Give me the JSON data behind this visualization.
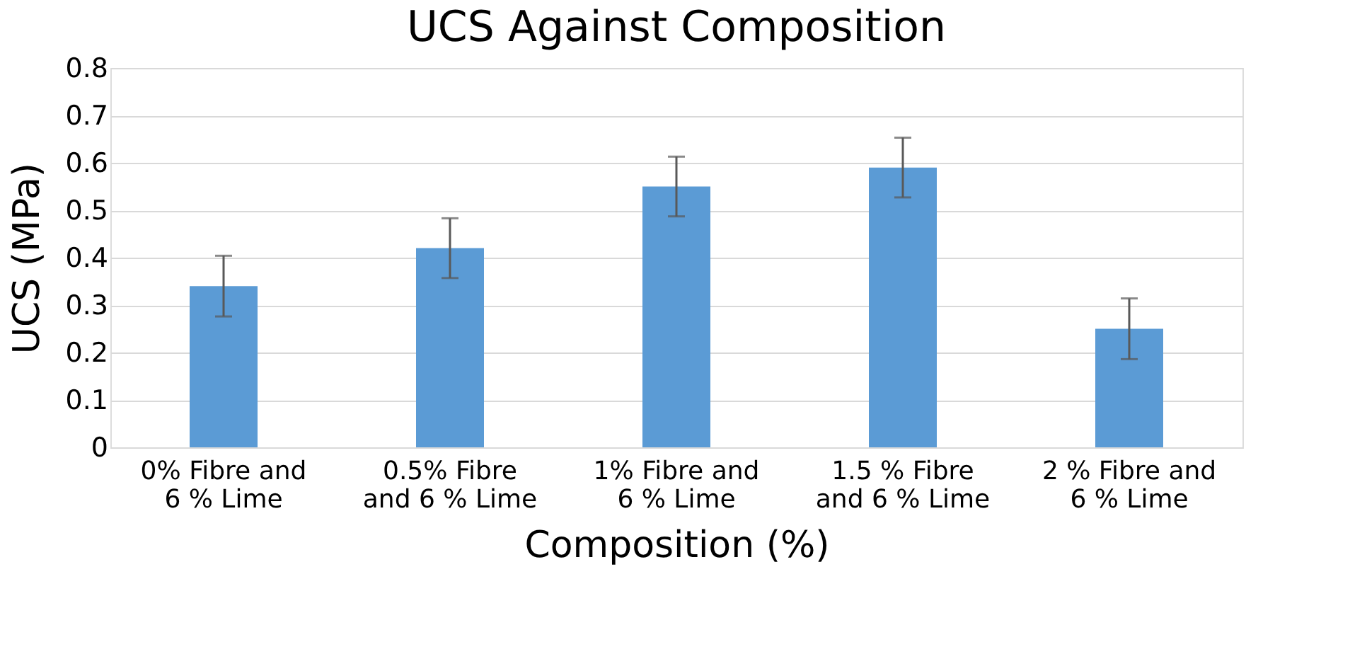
{
  "chart_data": {
    "type": "bar",
    "title": "UCS Against Composition",
    "xlabel": "Composition (%)",
    "ylabel": "UCS (MPa)",
    "categories": [
      "0% Fibre and\n6 % Lime",
      "0.5% Fibre\nand 6 % Lime",
      "1% Fibre and\n6 % Lime",
      "1.5 % Fibre\nand 6 % Lime",
      "2 % Fibre and\n6 % Lime"
    ],
    "values": [
      0.34,
      0.42,
      0.55,
      0.59,
      0.25
    ],
    "errors": [
      0.064,
      0.063,
      0.063,
      0.063,
      0.064
    ],
    "color": "#5b9bd5",
    "ylim": [
      0,
      0.8
    ],
    "yticks": [
      0,
      0.1,
      0.2,
      0.3,
      0.4,
      0.5,
      0.6,
      0.7,
      0.8
    ],
    "grid": "y"
  }
}
